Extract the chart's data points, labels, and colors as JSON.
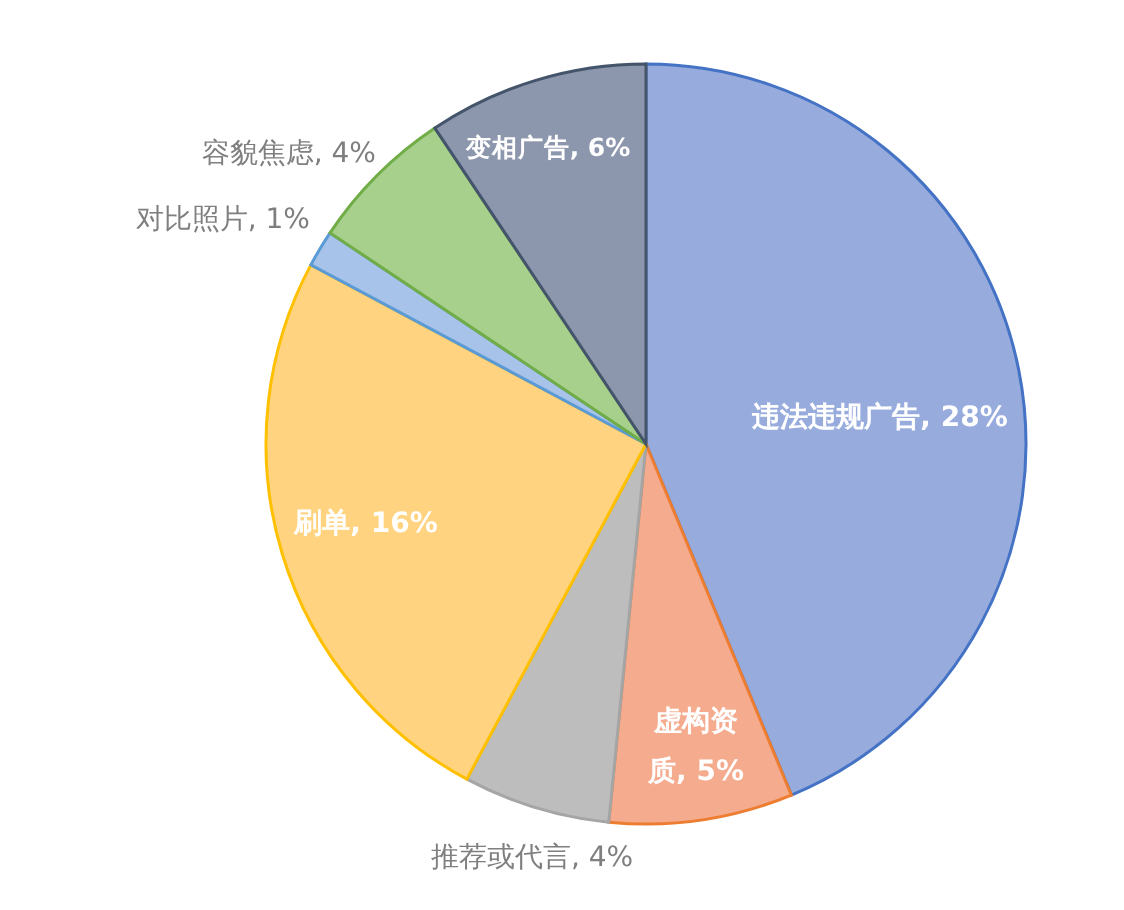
{
  "chart_data": {
    "type": "pie",
    "categories": [
      "违法违规广告",
      "虚构资质",
      "推荐或代言",
      "刷单",
      "对比照片",
      "容貌焦虑",
      "变相广告"
    ],
    "values": [
      28,
      5,
      4,
      16,
      1,
      4,
      6
    ],
    "value_labels": [
      "28%",
      "5%",
      "4%",
      "16%",
      "1%",
      "4%",
      "6%"
    ],
    "colors": [
      "#97abdd",
      "#f5ab8e",
      "#bdbdbd",
      "#ffd37f",
      "#a8c3ea",
      "#a8d08d",
      "#8c96ad"
    ],
    "legend": false
  }
}
